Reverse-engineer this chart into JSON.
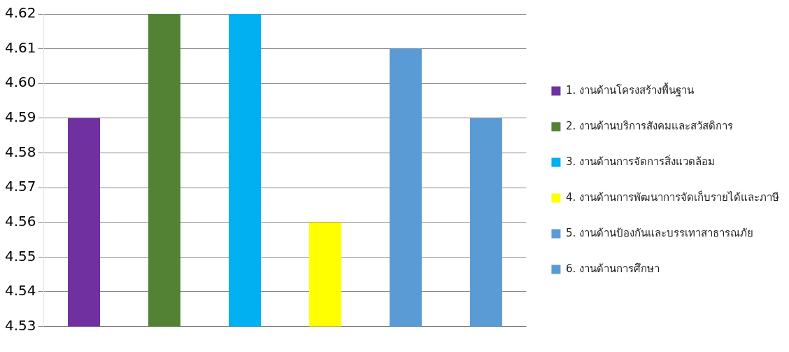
{
  "chart_data": {
    "type": "bar",
    "categories": [
      null,
      null,
      null,
      null,
      null,
      null
    ],
    "series": [
      {
        "name": "1. งานด้านโครงสร้างพื้นฐาน",
        "color": "#7030a0",
        "values": [
          4.59,
          null,
          null,
          null,
          null,
          null
        ]
      },
      {
        "name": "2. งานด้านบริการสังคมและสวัสดิการ",
        "color": "#548235",
        "values": [
          null,
          4.62,
          null,
          null,
          null,
          null
        ]
      },
      {
        "name": "3. งานด้านการจัดการสิ่งแวดล้อม",
        "color": "#00b0f0",
        "values": [
          null,
          null,
          4.62,
          null,
          null,
          null
        ]
      },
      {
        "name": "4. งานด้านการพัฒนาการจัดเก็บรายได้และภาษี",
        "color": "#ffff00",
        "values": [
          null,
          null,
          null,
          4.56,
          null,
          null
        ]
      },
      {
        "name": "5. งานด้านป้องกันและบรรเทาสาธารณภัย",
        "color": "#5b9bd5",
        "values": [
          null,
          null,
          null,
          null,
          4.61,
          null
        ]
      },
      {
        "name": "6. งานด้านการศึกษา",
        "color": "#5b9bd5",
        "values": [
          null,
          null,
          null,
          null,
          null,
          4.59
        ]
      }
    ],
    "ylim": [
      4.53,
      4.62
    ],
    "yticks": [
      4.53,
      4.54,
      4.55,
      4.56,
      4.57,
      4.58,
      4.59,
      {
        "value": 4.6,
        "label": "4.60"
      },
      4.61,
      4.62
    ],
    "grid": "y",
    "legend": "right"
  }
}
